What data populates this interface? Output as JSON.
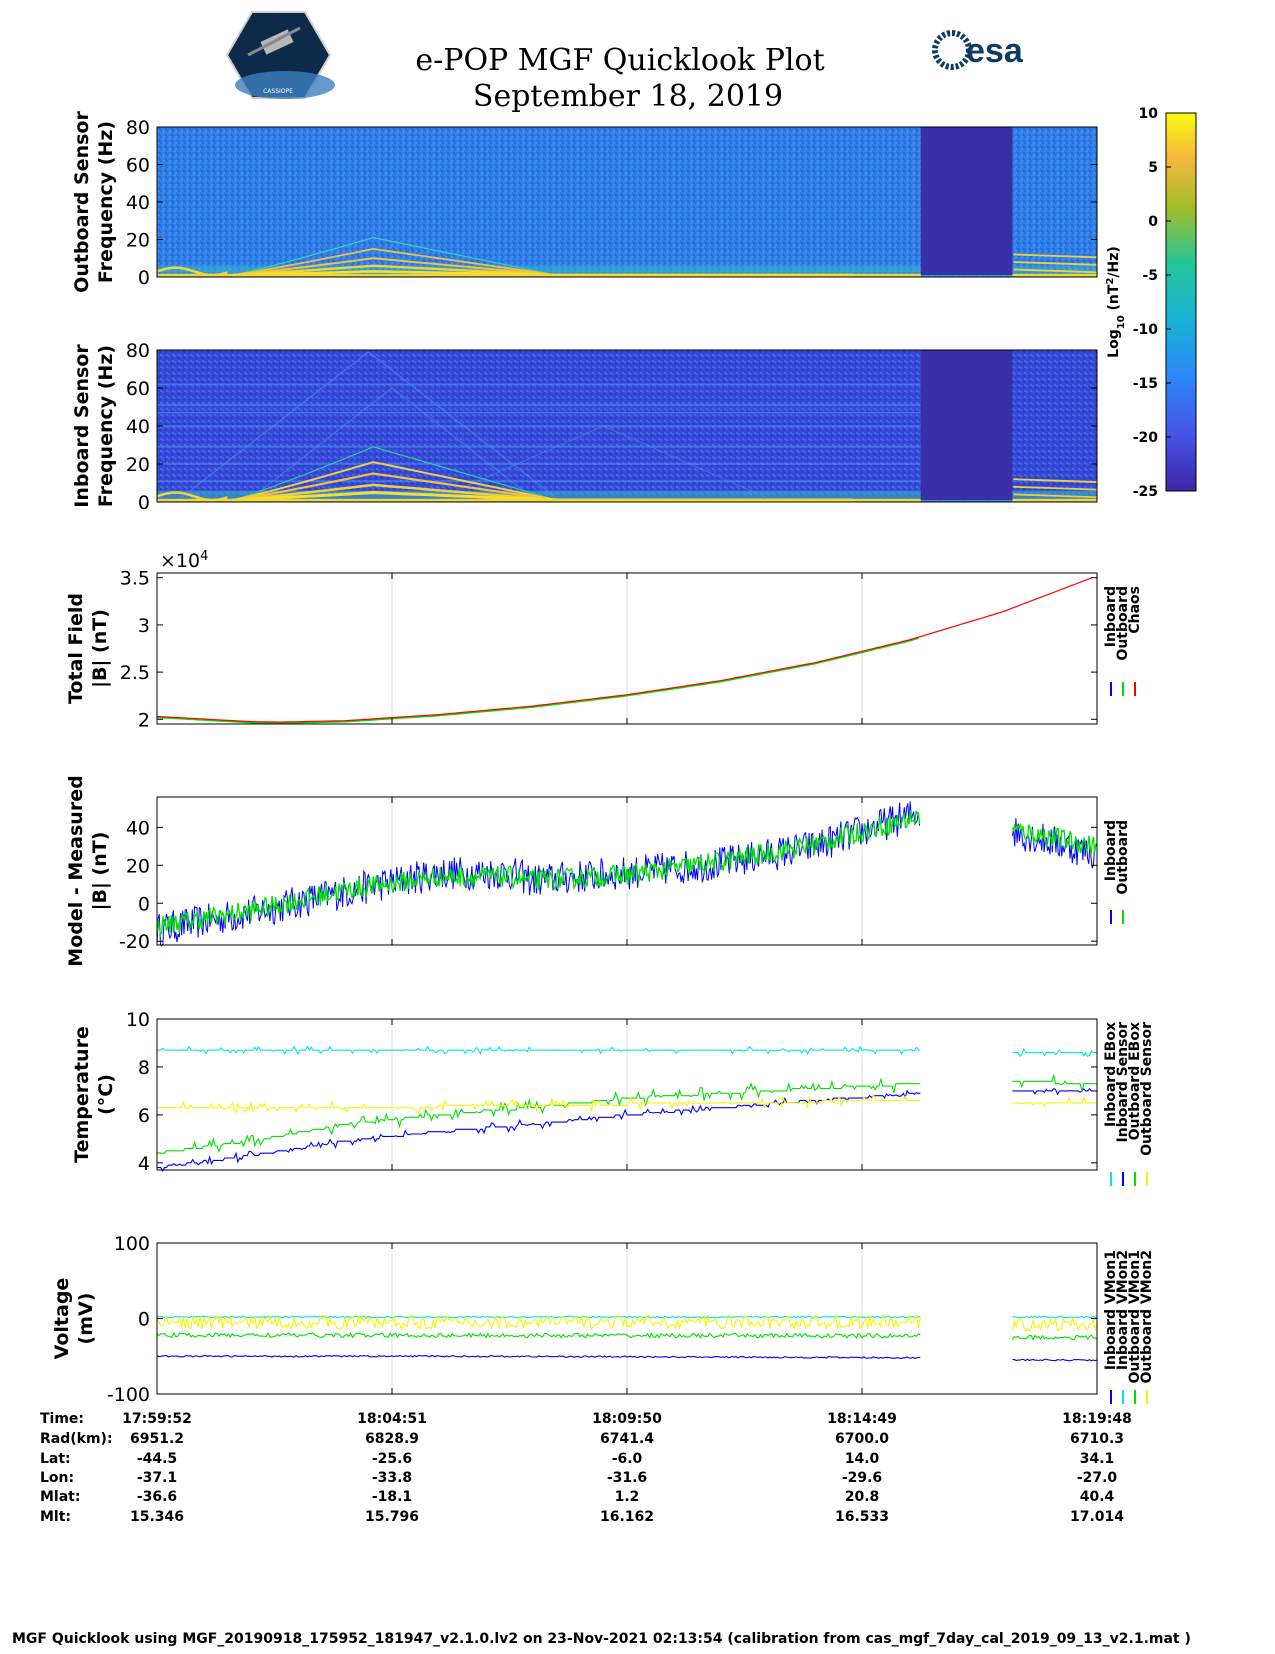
{
  "header": {
    "title": "e-POP MGF Quicklook Plot",
    "date": "September 18, 2019",
    "logo_left": "CASSIOPE",
    "logo_right": "esa"
  },
  "colors": {
    "blue": "#0000ff",
    "green": "#00e000",
    "red": "#ff0000",
    "cyan": "#00e5e5",
    "yellow": "#f5f500",
    "spectro_bg": "#2a74e6",
    "gap_fill": "#3a2fa8"
  },
  "chart_data": [
    {
      "type": "heatmap",
      "name": "outboard-spectrogram",
      "ylabel_line1": "Outboard Sensor",
      "ylabel_line2": "Frequency (Hz)",
      "ylim": [
        0,
        80
      ],
      "yticks": [
        "0",
        "20",
        "40",
        "60",
        "80"
      ],
      "data_gap_minutes": [
        16.25,
        18.2
      ]
    },
    {
      "type": "heatmap",
      "name": "inboard-spectrogram",
      "ylabel_line1": "Inboard Sensor",
      "ylabel_line2": "Frequency (Hz)",
      "ylim": [
        0,
        80
      ],
      "yticks": [
        "0",
        "20",
        "40",
        "60",
        "80"
      ],
      "data_gap_minutes": [
        16.25,
        18.2
      ]
    },
    {
      "type": "colorbar",
      "label_prefix": "Log",
      "label_sub": "10",
      "label_main": " (nT",
      "label_sup": "2",
      "label_suffix": "/Hz)",
      "range": [
        -25,
        10
      ],
      "ticks": [
        "10",
        "5",
        "0",
        "-5",
        "-10",
        "-15",
        "-20",
        "-25"
      ]
    },
    {
      "type": "line",
      "name": "total-field",
      "ylabel_line1": "Total Field",
      "ylabel_line2": "|B| (nT)",
      "exponent_base": "×10",
      "exponent_power": "4",
      "ylim": [
        1.95,
        3.55
      ],
      "yticks": [
        "2",
        "2.5",
        "3",
        "3.5"
      ],
      "ytick_values": [
        2,
        2.5,
        3,
        3.5
      ],
      "legend": [
        "Inboard",
        "Outboard",
        "Chaos"
      ],
      "series": [
        {
          "name": "Chaos",
          "x": [
            0,
            2,
            2.6,
            4,
            6,
            8,
            10,
            12,
            14,
            16,
            18,
            20
          ],
          "values": [
            2.03,
            1.975,
            1.97,
            1.985,
            2.05,
            2.14,
            2.26,
            2.41,
            2.6,
            2.84,
            3.14,
            3.52
          ]
        }
      ]
    },
    {
      "type": "line",
      "name": "model-minus-measured",
      "ylabel_line1": "Model - Measured",
      "ylabel_line2": "|B| (nT)",
      "ylim": [
        -22,
        56
      ],
      "yticks": [
        "-20",
        "0",
        "20",
        "40"
      ],
      "ytick_values": [
        -20,
        0,
        20,
        40
      ],
      "legend": [
        "Inboard",
        "Outboard"
      ],
      "series": [
        {
          "name": "Inboard",
          "x": [
            0,
            2,
            4,
            6,
            7.5,
            8,
            10,
            12,
            14,
            16.25,
            18.2,
            20
          ],
          "values": [
            -14,
            -5,
            6,
            16,
            16,
            12,
            16,
            21,
            30,
            48,
            38,
            26
          ]
        },
        {
          "name": "Outboard",
          "x": [
            0,
            2,
            4,
            6,
            7.5,
            8,
            10,
            12,
            14,
            16.25,
            18.2,
            20
          ],
          "values": [
            -12,
            -4,
            7,
            14,
            14,
            12,
            15,
            22,
            31,
            46,
            39,
            30
          ]
        }
      ]
    },
    {
      "type": "line",
      "name": "temperature",
      "ylabel_line1": "Temperature",
      "ylabel_line2": "(°C)",
      "ylim": [
        3.7,
        10
      ],
      "yticks": [
        "4",
        "6",
        "8",
        "10"
      ],
      "ytick_values": [
        4,
        6,
        8,
        10
      ],
      "legend": [
        "Inboard EBox",
        "Inboard Sensor",
        "Outboard EBox",
        "Outboard Sensor"
      ],
      "series": [
        {
          "name": "Inboard EBox",
          "x": [
            0,
            16.25,
            18.2,
            20
          ],
          "values": [
            8.7,
            8.7,
            8.6,
            8.6
          ]
        },
        {
          "name": "Inboard Sensor",
          "x": [
            0,
            2,
            4,
            6,
            8,
            10,
            12,
            14,
            16.25,
            18.2,
            20
          ],
          "values": [
            3.8,
            4.3,
            4.9,
            5.3,
            5.6,
            6.0,
            6.3,
            6.6,
            6.9,
            7.0,
            7.0
          ]
        },
        {
          "name": "Outboard EBox",
          "x": [
            0,
            2,
            4,
            6,
            8,
            10,
            12,
            14,
            16.25,
            18.2,
            20
          ],
          "values": [
            4.4,
            4.9,
            5.6,
            6.0,
            6.3,
            6.7,
            6.9,
            7.1,
            7.3,
            7.4,
            7.3
          ]
        },
        {
          "name": "Outboard Sensor",
          "x": [
            0,
            4,
            8,
            12,
            16.25,
            18.2,
            20
          ],
          "values": [
            6.3,
            6.3,
            6.4,
            6.5,
            6.6,
            6.5,
            6.5
          ]
        }
      ]
    },
    {
      "type": "line",
      "name": "voltage",
      "ylabel_line1": "Voltage",
      "ylabel_line2": "(mV)",
      "ylim": [
        -100,
        100
      ],
      "yticks": [
        "-100",
        "0",
        "100"
      ],
      "ytick_values": [
        -100,
        0,
        100
      ],
      "legend": [
        "Inboard VMon1",
        "Inboard VMon2",
        "Outboard VMon1",
        "Outboard VMon2"
      ],
      "series": [
        {
          "name": "Inboard VMon1",
          "x": [
            0,
            6.5,
            16.25,
            18.2,
            20
          ],
          "values": [
            -50,
            -50,
            -52,
            -55,
            -55
          ]
        },
        {
          "name": "Inboard VMon2",
          "x": [
            0,
            16.25,
            18.2,
            20
          ],
          "values": [
            2,
            2,
            2,
            2
          ]
        },
        {
          "name": "Outboard VMon1",
          "x": [
            0,
            16.25,
            18.2,
            20
          ],
          "values": [
            -22,
            -23,
            -25,
            -25
          ]
        },
        {
          "name": "Outboard VMon2",
          "x": [
            0,
            16.25,
            18.2,
            20
          ],
          "values": [
            -5,
            -5,
            -8,
            -8
          ]
        }
      ]
    }
  ],
  "ephemeris": {
    "row_labels": [
      "Time:",
      "Rad(km):",
      "Lat:",
      "Lon:",
      "Mlat:",
      "Mlt:"
    ],
    "columns": [
      [
        "17:59:52",
        "6951.2",
        "-44.5",
        "-37.1",
        "-36.6",
        "15.346"
      ],
      [
        "18:04:51",
        "6828.9",
        "-25.6",
        "-33.8",
        "-18.1",
        "15.796"
      ],
      [
        "18:09:50",
        "6741.4",
        "-6.0",
        "-31.6",
        "1.2",
        "16.162"
      ],
      [
        "18:14:49",
        "6700.0",
        "14.0",
        "-29.6",
        "20.8",
        "16.533"
      ],
      [
        "18:19:48",
        "6710.3",
        "34.1",
        "-27.0",
        "40.4",
        "17.014"
      ]
    ]
  },
  "footer": "MGF Quicklook using MGF_20190918_175952_181947_v2.1.0.lv2 on 23-Nov-2021 02:13:54 (calibration from cas_mgf_7day_cal_2019_09_13_v2.1.mat )"
}
